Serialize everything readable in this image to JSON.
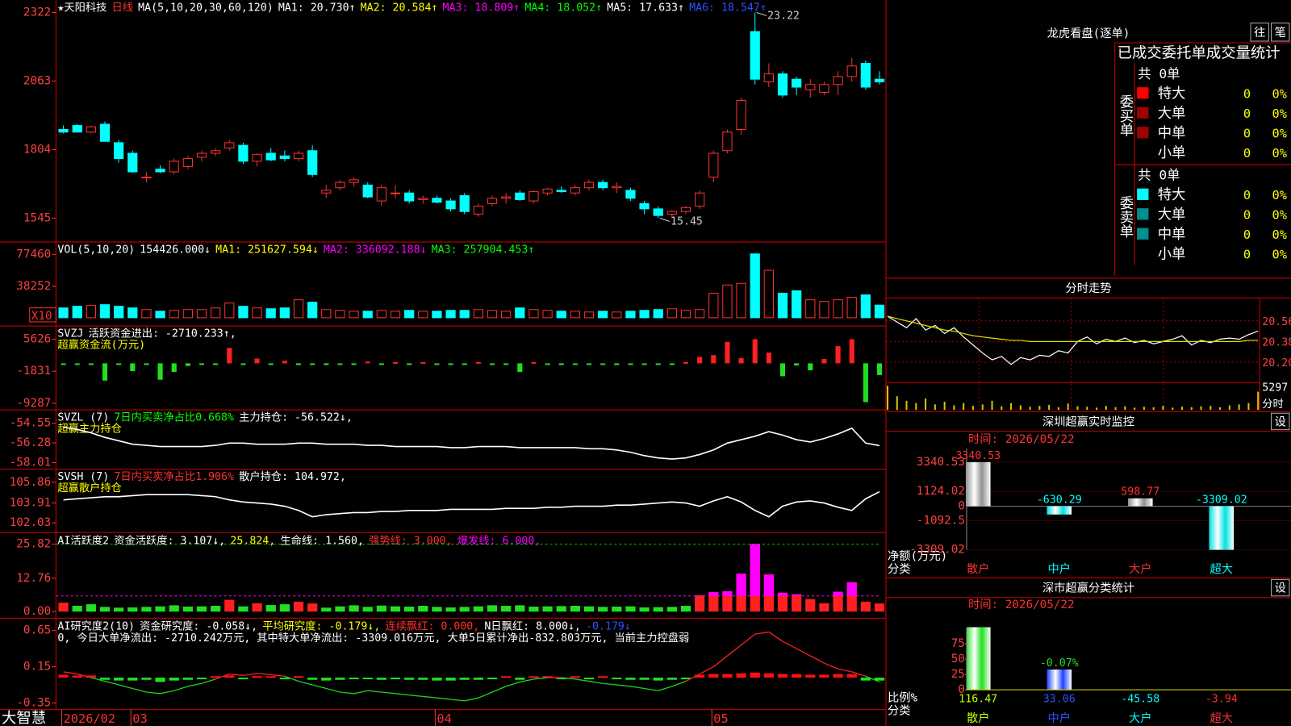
{
  "main": {
    "header": [
      [
        {
          "text": "★天阳科技",
          "color": "#ffffff"
        },
        {
          "text": "日线",
          "color": "#ff3030"
        },
        {
          "text": "MA(5,10,20,30,60,120)",
          "color": "#ffffff"
        },
        {
          "text": "MA1: 20.730↑",
          "color": "#ffffff"
        },
        {
          "text": "MA2: 20.584↑",
          "color": "#ffff00"
        },
        {
          "text": "MA3: 18.809↑",
          "color": "#ff00ff"
        },
        {
          "text": "MA4: 18.052↑",
          "color": "#00ff00"
        },
        {
          "text": "MA5: 17.633↑",
          "color": "#ffffff"
        },
        {
          "text": "MA6: 18.547↑",
          "color": "#3050ff"
        }
      ]
    ],
    "ylim": [
      1461,
      2363
    ],
    "yticks": [
      2322,
      2063,
      1804,
      1545
    ],
    "candles": {
      "open": [
        1880,
        1895,
        1870,
        1900,
        1830,
        1790,
        1700,
        1730,
        1720,
        1740,
        1775,
        1790,
        1810,
        1820,
        1760,
        1790,
        1780,
        1770,
        1800,
        1640,
        1660,
        1680,
        1670,
        1610,
        1640,
        1640,
        1615,
        1620,
        1610,
        1630,
        1560,
        1600,
        1620,
        1640,
        1610,
        1640,
        1650,
        1640,
        1660,
        1680,
        1660,
        1650,
        1600,
        1580,
        1560,
        1570,
        1590,
        1700,
        1800,
        1880,
        2250,
        2060,
        2090,
        2070,
        2030,
        2020,
        2050,
        2080,
        2130,
        2070
      ],
      "high": [
        1895,
        1900,
        1895,
        1910,
        1840,
        1800,
        1720,
        1745,
        1770,
        1780,
        1800,
        1810,
        1840,
        1830,
        1790,
        1810,
        1800,
        1800,
        1820,
        1670,
        1690,
        1700,
        1680,
        1670,
        1670,
        1650,
        1630,
        1630,
        1620,
        1640,
        1600,
        1630,
        1640,
        1650,
        1650,
        1660,
        1665,
        1670,
        1690,
        1690,
        1680,
        1660,
        1610,
        1590,
        1575,
        1590,
        1650,
        1800,
        1880,
        2000,
        2322,
        2130,
        2100,
        2080,
        2070,
        2060,
        2100,
        2150,
        2140,
        2100
      ],
      "low": [
        1865,
        1870,
        1865,
        1835,
        1755,
        1715,
        1680,
        1715,
        1710,
        1730,
        1760,
        1780,
        1800,
        1750,
        1740,
        1760,
        1760,
        1760,
        1700,
        1620,
        1650,
        1665,
        1620,
        1590,
        1620,
        1600,
        1600,
        1600,
        1570,
        1560,
        1550,
        1590,
        1600,
        1610,
        1600,
        1630,
        1640,
        1630,
        1650,
        1650,
        1640,
        1610,
        1560,
        1545,
        1545,
        1560,
        1580,
        1680,
        1790,
        1860,
        2050,
        2040,
        2000,
        2010,
        2000,
        2010,
        2010,
        2060,
        2030,
        2050
      ],
      "close": [
        1870,
        1870,
        1890,
        1835,
        1770,
        1720,
        1700,
        1720,
        1760,
        1770,
        1790,
        1800,
        1830,
        1760,
        1785,
        1765,
        1770,
        1790,
        1710,
        1650,
        1680,
        1690,
        1625,
        1660,
        1640,
        1610,
        1620,
        1605,
        1580,
        1570,
        1590,
        1620,
        1625,
        1615,
        1645,
        1655,
        1645,
        1660,
        1680,
        1660,
        1665,
        1620,
        1580,
        1555,
        1570,
        1585,
        1640,
        1790,
        1870,
        1990,
        2070,
        2090,
        2010,
        2040,
        2050,
        2050,
        2080,
        2120,
        2040,
        2060
      ]
    },
    "annotations": [
      {
        "label": "23.22",
        "value": 2322,
        "day": 50
      },
      {
        "label": "15.45",
        "value": 1545,
        "day": 43
      }
    ]
  },
  "vol": {
    "header": [
      [
        {
          "text": "VOL(5,10,20)",
          "color": "#ffffff"
        },
        {
          "text": "154426.000↓",
          "color": "#ffffff"
        },
        {
          "text": "MA1: 251627.594↓",
          "color": "#ffff00"
        },
        {
          "text": "MA2: 336092.188↓",
          "color": "#ff00ff"
        },
        {
          "text": "MA3: 257904.453↑",
          "color": "#00ff00"
        }
      ]
    ],
    "scale_label": "X10",
    "ylim": [
      -4000,
      90530
    ],
    "yticks": [
      77460,
      38252
    ],
    "values": [
      12000,
      14000,
      15000,
      16000,
      14000,
      12000,
      10000,
      8000,
      9000,
      10000,
      10000,
      12000,
      18000,
      14000,
      12000,
      11000,
      12000,
      22000,
      19000,
      10000,
      9000,
      8000,
      8000,
      9000,
      8000,
      9000,
      8000,
      8000,
      9000,
      9000,
      10000,
      9000,
      8000,
      12000,
      10000,
      9000,
      8000,
      8000,
      7000,
      8000,
      7000,
      8000,
      9000,
      10000,
      11000,
      9000,
      10000,
      30000,
      40000,
      42000,
      78000,
      58000,
      30000,
      33000,
      22000,
      20000,
      22000,
      25000,
      28000,
      15443
    ]
  },
  "svzj": {
    "header": [
      [
        {
          "text": "SVZJ",
          "color": "#ffffff"
        },
        {
          "text": "活跃资金进出: -2710.233↑,",
          "color": "#ffffff"
        }
      ],
      [
        {
          "text": "超赢资金流(万元)",
          "color": "#ffff00"
        }
      ]
    ],
    "ylim": [
      -10435,
      8303
    ],
    "yticks": [
      5626,
      -1831,
      -9287
    ],
    "values": [
      -200,
      -300,
      -200,
      -4000,
      -300,
      -1800,
      -300,
      -3800,
      -2000,
      -600,
      -300,
      -300,
      3600,
      -200,
      1100,
      -200,
      600,
      -400,
      -300,
      -400,
      -300,
      -300,
      400,
      -200,
      300,
      -200,
      300,
      -200,
      -300,
      -200,
      300,
      -200,
      -300,
      -2000,
      300,
      -300,
      -400,
      -300,
      -200,
      -300,
      -400,
      -300,
      -200,
      -300,
      -300,
      300,
      1500,
      1900,
      5000,
      1200,
      5600,
      2500,
      -3000,
      -500,
      -1600,
      1000,
      4000,
      5600,
      -9000,
      -2710.233
    ]
  },
  "svzl": {
    "header": [
      [
        {
          "text": "SVZL (7)",
          "color": "#ffffff"
        },
        {
          "text": "7日内买卖净占比0.668%",
          "color": "#00ff00"
        },
        {
          "text": "主力持仓: -56.522↓,",
          "color": "#ffffff"
        }
      ],
      [
        {
          "text": "超赢主力持仓",
          "color": "#ffff00"
        }
      ]
    ],
    "ylim": [
      -58.44,
      -53.54
    ],
    "yticks": [
      -54.55,
      -56.28,
      -58.01
    ],
    "values": [
      -54.9,
      -55.1,
      -55.4,
      -55.8,
      -56.1,
      -56.4,
      -56.5,
      -56.6,
      -56.6,
      -56.6,
      -56.6,
      -56.5,
      -56.3,
      -56.3,
      -56.4,
      -56.4,
      -56.4,
      -56.3,
      -56.3,
      -56.4,
      -56.4,
      -56.4,
      -56.5,
      -56.5,
      -56.6,
      -56.6,
      -56.6,
      -56.6,
      -56.7,
      -56.7,
      -56.6,
      -56.6,
      -56.6,
      -56.7,
      -56.7,
      -56.7,
      -56.7,
      -56.7,
      -56.8,
      -56.8,
      -56.9,
      -57.1,
      -57.4,
      -57.6,
      -57.7,
      -57.6,
      -57.3,
      -56.9,
      -56.3,
      -56.0,
      -55.7,
      -55.3,
      -55.6,
      -56.0,
      -56.2,
      -55.9,
      -55.5,
      -55.0,
      -56.3,
      -56.522
    ]
  },
  "svsh": {
    "header": [
      [
        {
          "text": "SVSH (7)",
          "color": "#ffffff"
        },
        {
          "text": "7日内买卖净占比1.906%",
          "color": "#ff3030"
        },
        {
          "text": "散户持仓: 104.972,",
          "color": "#ffffff"
        }
      ],
      [
        {
          "text": "超赢散户持仓",
          "color": "#ffff00"
        }
      ]
    ],
    "ylim": [
      101.26,
      106.95
    ],
    "yticks": [
      105.86,
      103.91,
      102.03
    ],
    "values": [
      104.2,
      104.3,
      104.4,
      104.5,
      104.5,
      104.6,
      104.7,
      104.7,
      104.7,
      104.7,
      104.6,
      104.5,
      104.2,
      104.0,
      103.9,
      103.8,
      103.6,
      103.2,
      102.6,
      102.8,
      102.9,
      103.0,
      103.0,
      103.1,
      103.1,
      103.2,
      103.2,
      103.2,
      103.3,
      103.3,
      103.3,
      103.3,
      103.4,
      103.4,
      103.4,
      103.5,
      103.5,
      103.6,
      103.6,
      103.6,
      103.7,
      103.7,
      103.8,
      103.9,
      104.0,
      103.9,
      103.6,
      104.1,
      104.5,
      104.0,
      103.2,
      102.6,
      103.6,
      104.0,
      104.1,
      103.9,
      103.5,
      103.2,
      104.3,
      104.972
    ]
  },
  "act": {
    "header": [
      [
        {
          "text": "AI活跃度2",
          "color": "#ffffff"
        },
        {
          "text": "资金活跃度: 3.107↓,",
          "color": "#ffffff"
        },
        {
          "text": "25.824,",
          "color": "#ffff00"
        },
        {
          "text": "生命线: 1.560,",
          "color": "#ffffff"
        },
        {
          "text": "强势线: 3.000,",
          "color": "#ff3030"
        },
        {
          "text": "爆发线: 6.000,",
          "color": "#ff00ff"
        }
      ]
    ],
    "ylim": [
      -1.57,
      29.28
    ],
    "yticks": [
      25.82,
      12.76,
      {
        "value": 0,
        "label": "0.00"
      }
    ],
    "strong": 3,
    "lines": [
      {
        "value": 25.824,
        "color": "#00c000"
      },
      {
        "value": 6,
        "color": "#ff00ff"
      }
    ],
    "values": [
      3.4,
      2.2,
      2.8,
      1.8,
      1.5,
      1.6,
      1.8,
      2.0,
      2.4,
      1.9,
      2.0,
      2.2,
      4.5,
      2.0,
      3.2,
      2.5,
      2.8,
      3.8,
      3.1,
      1.5,
      2.0,
      2.4,
      1.8,
      2.3,
      2.0,
      1.9,
      2.2,
      1.8,
      1.6,
      1.8,
      2.0,
      2.4,
      2.2,
      2.4,
      1.9,
      2.0,
      2.1,
      2.2,
      2.0,
      1.8,
      1.9,
      2.0,
      1.6,
      1.7,
      1.8,
      2.2,
      6.2,
      7.4,
      7.8,
      14.5,
      25.824,
      14.2,
      7.2,
      6.6,
      4.8,
      3.2,
      7.6,
      11.2,
      3.8,
      3.107
    ]
  },
  "res": {
    "header": [
      [
        {
          "text": "AI研究度2(10)",
          "color": "#ffffff"
        },
        {
          "text": "资金研究度: -0.058↓,",
          "color": "#ffffff"
        },
        {
          "text": "平均研究度: -0.179↓,",
          "color": "#ffff00"
        },
        {
          "text": "连续飘红: 0.000,",
          "color": "#ff3030"
        },
        {
          "text": "N日飘红: 8.000↓,",
          "color": "#ffffff"
        },
        {
          "text": "-0.179↓",
          "color": "#3050ff"
        }
      ],
      [
        {
          "text": "0, 今日大单净流出: -2710.242万元, 其中特大单净流出: -3309.016万元, 大单5日累计净出-832.803万元, 当前主力控盘弱",
          "color": "#ffffff"
        }
      ]
    ],
    "ylim": [
      -0.44,
      0.786
    ],
    "yticks": [
      0.65,
      0.15,
      -0.35
    ],
    "bars": [
      0.04,
      0.03,
      0.03,
      -0.03,
      -0.04,
      -0.04,
      -0.03,
      -0.06,
      -0.04,
      -0.03,
      -0.02,
      0.02,
      0.03,
      -0.02,
      0.02,
      0.02,
      -0.02,
      0.02,
      -0.03,
      -0.04,
      -0.03,
      -0.02,
      -0.02,
      -0.03,
      -0.02,
      -0.03,
      -0.03,
      -0.04,
      -0.04,
      -0.03,
      -0.03,
      -0.02,
      0.02,
      -0.03,
      0.02,
      0.02,
      -0.02,
      0.02,
      -0.02,
      0.02,
      -0.02,
      -0.03,
      -0.03,
      -0.04,
      -0.03,
      -0.02,
      0.04,
      0.05,
      0.05,
      0.06,
      0.07,
      0.06,
      0.05,
      0.05,
      0.04,
      0.04,
      0.05,
      0.05,
      -0.04,
      -0.04
    ],
    "line": [
      0.08,
      0.05,
      0.0,
      -0.05,
      -0.1,
      -0.15,
      -0.2,
      -0.22,
      -0.18,
      -0.12,
      -0.08,
      -0.02,
      0.05,
      0.03,
      0.06,
      0.04,
      0.02,
      -0.05,
      -0.1,
      -0.15,
      -0.2,
      -0.22,
      -0.18,
      -0.2,
      -0.22,
      -0.24,
      -0.26,
      -0.28,
      -0.3,
      -0.32,
      -0.28,
      -0.2,
      -0.12,
      -0.06,
      -0.02,
      0.0,
      0.0,
      -0.02,
      -0.05,
      -0.08,
      -0.1,
      -0.12,
      -0.15,
      -0.18,
      -0.12,
      -0.05,
      0.05,
      0.15,
      0.3,
      0.45,
      0.6,
      0.63,
      0.5,
      0.4,
      0.3,
      0.2,
      0.12,
      0.08,
      0.02,
      -0.058
    ]
  },
  "footer": {
    "brand": "大智慧",
    "months": [
      {
        "label": "2026/02",
        "start": 0
      },
      {
        "label": "03",
        "start": 5
      },
      {
        "label": "04",
        "start": 27
      },
      {
        "label": "05",
        "start": 47
      }
    ]
  },
  "longhu": {
    "title": "龙虎看盘(逐单)",
    "buttons": [
      "往",
      "笔"
    ],
    "subtitle": "已成交委托单成交量统计",
    "buy": {
      "label": "委买单",
      "total": "共 0单",
      "rows": [
        {
          "name": "特大",
          "count": 0,
          "pct": "0%",
          "color": "#ff0000"
        },
        {
          "name": "大单",
          "count": 0,
          "pct": "0%",
          "color": "#a00000"
        },
        {
          "name": "中单",
          "count": 0,
          "pct": "0%",
          "color": "#a00000"
        },
        {
          "name": "小单",
          "count": 0,
          "pct": "0%",
          "color": "#000000"
        }
      ]
    },
    "sell": {
      "label": "委卖单",
      "total": "共 0单",
      "rows": [
        {
          "name": "特大",
          "count": 0,
          "pct": "0%",
          "color": "#00ffff"
        },
        {
          "name": "大单",
          "count": 0,
          "pct": "0%",
          "color": "#009090"
        },
        {
          "name": "中单",
          "count": 0,
          "pct": "0%",
          "color": "#009090"
        },
        {
          "name": "小单",
          "count": 0,
          "pct": "0%",
          "color": "#000000"
        }
      ]
    }
  },
  "fenshi": {
    "title": "分时走势",
    "ylim": [
      20.02,
      20.76
    ],
    "yticks": [
      20.56,
      20.38,
      {
        "value": 20.2,
        "label": "20.20"
      }
    ],
    "price": [
      20.6,
      20.55,
      20.5,
      20.58,
      20.48,
      20.52,
      20.45,
      20.5,
      20.42,
      20.35,
      20.28,
      20.22,
      20.25,
      20.18,
      20.24,
      20.22,
      20.26,
      20.25,
      20.3,
      20.28,
      20.38,
      20.42,
      20.36,
      20.4,
      20.38,
      20.41,
      20.37,
      20.39,
      20.36,
      20.38,
      20.4,
      20.43,
      20.35,
      20.39,
      20.37,
      20.4,
      20.41,
      20.4,
      20.44,
      20.47
    ],
    "avg": [
      20.6,
      20.58,
      20.56,
      20.54,
      20.52,
      20.5,
      20.48,
      20.47,
      20.45,
      20.43,
      20.42,
      20.41,
      20.4,
      20.39,
      20.39,
      20.38,
      20.38,
      20.38,
      20.38,
      20.38,
      20.38,
      20.38,
      20.38,
      20.38,
      20.38,
      20.38,
      20.38,
      20.38,
      20.38,
      20.38,
      20.38,
      20.38,
      20.38,
      20.38,
      20.38,
      20.38,
      20.38,
      20.38,
      20.39,
      20.39
    ],
    "vol_ylim": [
      0,
      5600
    ],
    "vol_ticks": [
      5297
    ],
    "vol_label": "分时",
    "volume": [
      5297,
      3000,
      2000,
      1500,
      2500,
      1200,
      1800,
      1000,
      1500,
      900,
      1200,
      2000,
      800,
      1500,
      1000,
      700,
      900,
      1100,
      600,
      1400,
      800,
      700,
      500,
      900,
      600,
      800,
      500,
      700,
      600,
      900,
      500,
      700,
      600,
      800,
      900,
      600,
      1000,
      1200,
      1500,
      4000
    ]
  },
  "monitor": {
    "title": "深圳超赢实时监控",
    "button": "设",
    "time": "时间: 2026/05/22",
    "ylabel": "净额(万元)",
    "xlabel": "分类",
    "ylim": [
      -3309.02,
      4370
    ],
    "yticks": [
      3340.53,
      1124.02,
      0,
      -1092.5,
      -3309.02
    ],
    "categories": [
      "散户",
      "中户",
      "大户",
      "超大"
    ],
    "values": [
      3340.53,
      -630.29,
      598.77,
      -3309.02
    ],
    "label_colors": [
      "#ff3030",
      "#00ffff",
      "#ff3030",
      "#00ffff"
    ]
  },
  "stats": {
    "title": "深市超赢分类统计",
    "button": "设",
    "time": "时间: 2026/05/22",
    "ylabel": "比例%",
    "xlabel": "分类",
    "ylim": [
      0,
      102
    ],
    "yticks": [
      75,
      50,
      25,
      0
    ],
    "categories": [
      "散户",
      "中户",
      "大户",
      "超大"
    ],
    "values": [
      116.47,
      33.06,
      -45.58,
      -3.94
    ],
    "colors": [
      "#20e020",
      "#2040ff",
      "#00ffff",
      "#ff3030"
    ],
    "label_colors": [
      "#c0ff00",
      "#3050ff",
      "#00ffff",
      "#ff3030"
    ],
    "annotations": [
      {
        "text": "-0.07%",
        "category": 1
      }
    ]
  }
}
